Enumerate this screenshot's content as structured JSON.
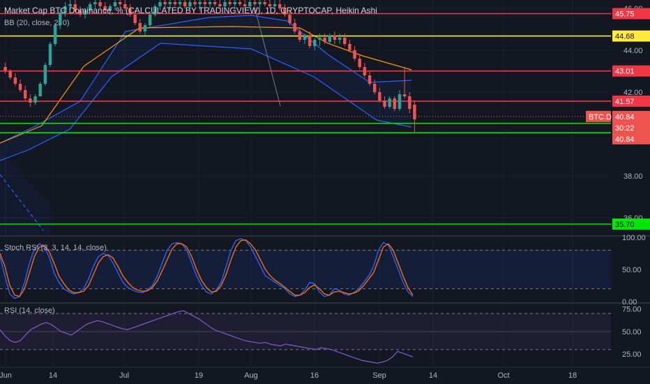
{
  "header": {
    "title": "Market Cap BTC Dominance, % (CALCULATED BY TRADINGVIEW), 1D, CRYPTOCAP, Heikin Ashi",
    "bb_label": "BB (20, close, 2, 0)",
    "stoch_label": "Stoch RSI (3, 3, 14, 14, close)",
    "rsi_label": "RSI (14, close)"
  },
  "colors": {
    "background": "#131722",
    "grid": "#1e222d",
    "up": "#26a69a",
    "down": "#ef5350",
    "red_level": "#f23645",
    "yellow_level": "#ffeb3b",
    "green_level": "#00e600",
    "bb_basis": "#ff9800",
    "bb_band": "#2962ff",
    "stoch_k": "#2962ff",
    "stoch_d": "#ff6d00",
    "rsi": "#7e57c2"
  },
  "chart_data": [
    {
      "type": "candlestick",
      "title": "Market Cap BTC Dominance, % (CALCULATED BY TRADINGVIEW), 1D, CRYPTOCAP, Heikin Ashi",
      "ylim": [
        35.2,
        46.4
      ],
      "yticks": [
        36.0,
        38.0,
        40.0,
        42.0,
        44.0,
        46.0
      ],
      "price_levels": [
        {
          "value": 45.75,
          "label": "45.75",
          "color": "#f23645"
        },
        {
          "value": 44.68,
          "label": "44.68",
          "color": "#ffeb3b"
        },
        {
          "value": 43.01,
          "label": "43.01",
          "color": "#f23645"
        },
        {
          "value": 41.57,
          "label": "41.57",
          "color": "#f23645"
        },
        {
          "value": 40.51,
          "label": "40.51",
          "color": "#00e600"
        },
        {
          "value": 40.06,
          "label": "40.06",
          "color": "#00e600"
        },
        {
          "value": 35.7,
          "label": "35.70",
          "color": "#00e600"
        }
      ],
      "current": {
        "symbol": "BTC.D",
        "value": "40.84",
        "countdown": "30:22",
        "second_value": "40.84"
      },
      "candles": [
        [
          43.2,
          43.4,
          42.9,
          43.0
        ],
        [
          43.0,
          43.1,
          42.6,
          42.7
        ],
        [
          42.7,
          42.9,
          42.3,
          42.4
        ],
        [
          42.4,
          42.6,
          42.0,
          42.1
        ],
        [
          42.1,
          42.3,
          41.6,
          41.7
        ],
        [
          41.7,
          41.9,
          41.3,
          41.5
        ],
        [
          41.5,
          41.9,
          41.4,
          41.8
        ],
        [
          41.8,
          42.5,
          41.8,
          42.4
        ],
        [
          42.4,
          43.4,
          42.3,
          43.3
        ],
        [
          43.3,
          44.4,
          43.2,
          44.3
        ],
        [
          44.3,
          45.3,
          44.2,
          45.2
        ],
        [
          45.2,
          46.0,
          45.0,
          45.8
        ],
        [
          45.8,
          46.3,
          45.6,
          46.1
        ],
        [
          46.1,
          46.4,
          45.9,
          46.2
        ],
        [
          46.2,
          46.4,
          45.8,
          45.9
        ],
        [
          45.9,
          46.1,
          45.6,
          45.7
        ],
        [
          45.7,
          46.0,
          45.5,
          45.9
        ],
        [
          45.9,
          46.3,
          45.8,
          46.2
        ],
        [
          46.2,
          46.4,
          46.0,
          46.3
        ],
        [
          46.3,
          46.4,
          46.0,
          46.1
        ],
        [
          46.1,
          46.3,
          45.8,
          45.9
        ],
        [
          45.9,
          46.2,
          45.7,
          46.1
        ],
        [
          46.1,
          46.4,
          45.9,
          46.3
        ],
        [
          46.3,
          46.4,
          46.0,
          46.2
        ],
        [
          46.2,
          46.4,
          45.9,
          46.0
        ],
        [
          46.0,
          46.2,
          45.6,
          45.7
        ],
        [
          45.7,
          45.9,
          45.2,
          45.3
        ],
        [
          45.3,
          45.5,
          44.8,
          44.9
        ],
        [
          44.9,
          45.3,
          44.7,
          45.2
        ],
        [
          45.2,
          45.8,
          45.1,
          45.7
        ],
        [
          45.7,
          46.2,
          45.6,
          46.1
        ],
        [
          46.1,
          46.4,
          45.9,
          46.3
        ],
        [
          46.3,
          46.4,
          46.0,
          46.2
        ],
        [
          46.2,
          46.4,
          45.9,
          46.3
        ],
        [
          46.3,
          46.4,
          46.1,
          46.2
        ],
        [
          46.2,
          46.4,
          46.0,
          46.3
        ],
        [
          46.3,
          46.4,
          46.0,
          46.1
        ],
        [
          46.1,
          46.4,
          46.0,
          46.3
        ],
        [
          46.3,
          46.4,
          46.1,
          46.2
        ],
        [
          46.2,
          46.4,
          45.9,
          46.3
        ],
        [
          46.3,
          46.4,
          46.0,
          46.2
        ],
        [
          46.2,
          46.4,
          46.0,
          46.3
        ],
        [
          46.3,
          46.4,
          46.1,
          46.2
        ],
        [
          46.2,
          46.4,
          46.0,
          46.1
        ],
        [
          46.1,
          46.4,
          46.0,
          46.3
        ],
        [
          46.3,
          46.4,
          46.1,
          46.2
        ],
        [
          46.2,
          46.4,
          46.0,
          46.3
        ],
        [
          46.3,
          46.4,
          46.1,
          46.2
        ],
        [
          46.2,
          46.4,
          46.0,
          46.1
        ],
        [
          46.1,
          46.4,
          46.0,
          46.3
        ],
        [
          46.3,
          46.4,
          46.1,
          46.2
        ],
        [
          46.2,
          46.4,
          46.0,
          46.3
        ],
        [
          46.3,
          46.4,
          46.1,
          46.2
        ],
        [
          46.2,
          46.4,
          46.0,
          46.1
        ],
        [
          46.1,
          46.4,
          46.0,
          46.2
        ],
        [
          46.2,
          46.4,
          45.9,
          46.0
        ],
        [
          46.0,
          46.2,
          45.6,
          45.7
        ],
        [
          45.7,
          45.9,
          45.2,
          45.3
        ],
        [
          45.3,
          45.5,
          44.8,
          44.9
        ],
        [
          44.9,
          45.1,
          44.4,
          44.5
        ],
        [
          44.5,
          44.8,
          44.3,
          44.7
        ],
        [
          44.7,
          44.9,
          44.1,
          44.2
        ],
        [
          44.2,
          44.6,
          44.0,
          44.5
        ],
        [
          44.5,
          44.8,
          44.2,
          44.6
        ],
        [
          44.6,
          44.8,
          44.3,
          44.4
        ],
        [
          44.4,
          44.8,
          44.3,
          44.7
        ],
        [
          44.7,
          44.9,
          44.3,
          44.5
        ],
        [
          44.5,
          44.8,
          44.3,
          44.6
        ],
        [
          44.6,
          44.8,
          44.2,
          44.3
        ],
        [
          44.3,
          44.5,
          43.9,
          44.0
        ],
        [
          44.0,
          44.2,
          43.5,
          43.6
        ],
        [
          43.6,
          43.8,
          43.1,
          43.2
        ],
        [
          43.2,
          43.4,
          42.7,
          42.8
        ],
        [
          42.8,
          43.0,
          42.3,
          42.4
        ],
        [
          42.4,
          42.6,
          41.9,
          42.0
        ],
        [
          42.0,
          42.2,
          41.5,
          41.6
        ],
        [
          41.6,
          41.8,
          41.2,
          41.3
        ],
        [
          41.3,
          41.8,
          41.2,
          41.7
        ],
        [
          41.7,
          41.8,
          41.1,
          41.2
        ],
        [
          41.2,
          42.1,
          41.1,
          41.9
        ],
        [
          41.9,
          43.2,
          41.7,
          41.8
        ],
        [
          41.8,
          42.0,
          41.0,
          41.2
        ],
        [
          41.4,
          41.6,
          40.1,
          40.7
        ]
      ],
      "x_ticks": [
        "Jun",
        "14",
        "Jul",
        "19",
        "Aug",
        "16",
        "Sep",
        "14",
        "Oct",
        "18"
      ]
    },
    {
      "type": "line",
      "title": "Stoch RSI (3, 3, 14, 14, close)",
      "ylim": [
        0,
        100
      ],
      "yticks": [
        0.0,
        50.0,
        100.0
      ],
      "bands": [
        20,
        80
      ],
      "series": [
        {
          "name": "K",
          "color": "#2962ff",
          "values": [
            70,
            40,
            12,
            5,
            8,
            30,
            60,
            82,
            90,
            85,
            70,
            45,
            30,
            20,
            15,
            12,
            14,
            20,
            35,
            55,
            70,
            75,
            72,
            60,
            45,
            30,
            22,
            18,
            15,
            14,
            18,
            25,
            40,
            60,
            80,
            90,
            92,
            90,
            80,
            60,
            40,
            25,
            15,
            12,
            18,
            30,
            55,
            80,
            95,
            98,
            95,
            85,
            70,
            55,
            40,
            35,
            30,
            25,
            20,
            12,
            8,
            10,
            18,
            30,
            28,
            15,
            8,
            10,
            20,
            18,
            12,
            10,
            14,
            20,
            30,
            40,
            55,
            80,
            92,
            88,
            70,
            50,
            30,
            15,
            8
          ]
        },
        {
          "name": "D",
          "color": "#ff6d00",
          "values": [
            75,
            55,
            25,
            10,
            8,
            20,
            45,
            70,
            85,
            87,
            78,
            60,
            40,
            28,
            18,
            14,
            14,
            16,
            25,
            42,
            60,
            70,
            73,
            68,
            55,
            40,
            30,
            22,
            18,
            16,
            17,
            22,
            32,
            48,
            65,
            82,
            90,
            90,
            85,
            70,
            50,
            33,
            22,
            15,
            16,
            25,
            42,
            65,
            85,
            95,
            96,
            90,
            80,
            65,
            50,
            40,
            33,
            28,
            22,
            16,
            10,
            10,
            14,
            22,
            26,
            20,
            12,
            10,
            15,
            16,
            14,
            12,
            13,
            17,
            25,
            35,
            45,
            65,
            85,
            90,
            80,
            60,
            40,
            22,
            10
          ]
        }
      ]
    },
    {
      "type": "line",
      "title": "RSI (14, close)",
      "ylim": [
        12,
        80
      ],
      "yticks": [
        25.0,
        50.0,
        75.0
      ],
      "bands": [
        30,
        70
      ],
      "series": [
        {
          "name": "RSI",
          "color": "#7e57c2",
          "values": [
            52,
            45,
            40,
            38,
            40,
            46,
            52,
            55,
            58,
            60,
            58,
            54,
            50,
            48,
            46,
            50,
            54,
            58,
            60,
            62,
            61,
            59,
            57,
            55,
            53,
            52,
            54,
            56,
            58,
            60,
            62,
            64,
            66,
            68,
            70,
            72,
            73,
            70,
            67,
            64,
            60,
            56,
            52,
            50,
            48,
            46,
            44,
            42,
            40,
            39,
            38,
            37,
            38,
            36,
            35,
            34,
            36,
            35,
            34,
            33,
            32,
            31,
            30,
            32,
            31,
            30,
            28,
            26,
            24,
            22,
            20,
            18,
            17,
            16,
            15,
            16,
            18,
            22,
            28,
            26,
            24,
            22
          ]
        }
      ]
    }
  ]
}
